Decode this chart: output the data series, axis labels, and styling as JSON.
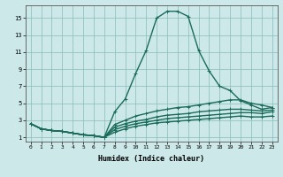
{
  "xlabel": "Humidex (Indice chaleur)",
  "bg_color": "#cce8e8",
  "grid_color": "#88bbbb",
  "line_color": "#1a6b5a",
  "xlim": [
    -0.5,
    23.5
  ],
  "ylim": [
    0.5,
    16.5
  ],
  "xticks": [
    0,
    1,
    2,
    3,
    4,
    5,
    6,
    7,
    8,
    9,
    10,
    11,
    12,
    13,
    14,
    15,
    16,
    17,
    18,
    19,
    20,
    21,
    22,
    23
  ],
  "yticks": [
    1,
    3,
    5,
    7,
    9,
    11,
    13,
    15
  ],
  "lines": [
    [
      2.6,
      2.0,
      1.8,
      1.7,
      1.5,
      1.3,
      1.2,
      1.0,
      4.0,
      5.5,
      8.5,
      11.2,
      15.0,
      15.8,
      15.8,
      15.2,
      11.2,
      8.8,
      7.0,
      6.5,
      5.3,
      4.8,
      4.3,
      4.5
    ],
    [
      2.6,
      2.0,
      1.8,
      1.7,
      1.5,
      1.3,
      1.2,
      1.0,
      2.5,
      3.0,
      3.5,
      3.8,
      4.1,
      4.3,
      4.5,
      4.6,
      4.8,
      5.0,
      5.2,
      5.4,
      5.4,
      5.0,
      4.8,
      4.5
    ],
    [
      2.6,
      2.0,
      1.8,
      1.7,
      1.5,
      1.3,
      1.2,
      1.0,
      2.2,
      2.6,
      2.9,
      3.1,
      3.4,
      3.6,
      3.7,
      3.8,
      4.0,
      4.1,
      4.2,
      4.3,
      4.3,
      4.2,
      4.1,
      4.2
    ],
    [
      2.6,
      2.0,
      1.8,
      1.7,
      1.5,
      1.3,
      1.2,
      1.0,
      1.9,
      2.3,
      2.6,
      2.8,
      3.0,
      3.2,
      3.3,
      3.4,
      3.5,
      3.6,
      3.7,
      3.8,
      3.9,
      3.9,
      3.8,
      4.0
    ],
    [
      2.6,
      2.0,
      1.8,
      1.7,
      1.5,
      1.3,
      1.2,
      1.0,
      1.6,
      2.0,
      2.3,
      2.5,
      2.7,
      2.8,
      2.9,
      3.0,
      3.1,
      3.2,
      3.3,
      3.4,
      3.5,
      3.4,
      3.4,
      3.5
    ]
  ]
}
